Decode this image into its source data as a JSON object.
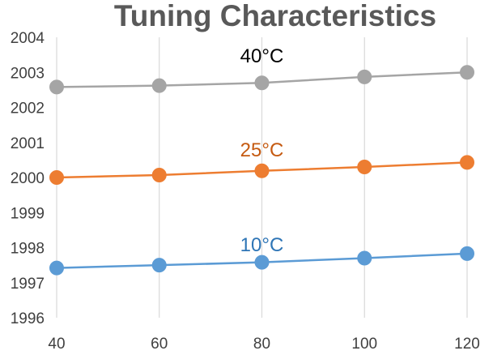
{
  "chart_data": {
    "type": "line",
    "title": "Tuning Characteristics",
    "xlabel": "",
    "ylabel": "",
    "x": [
      40,
      60,
      80,
      100,
      120
    ],
    "xlim": [
      40,
      120
    ],
    "ylim": [
      1996,
      2004
    ],
    "x_ticks": [
      "40",
      "60",
      "80",
      "100",
      "120"
    ],
    "y_ticks": [
      "1996",
      "1997",
      "1998",
      "1999",
      "2000",
      "2001",
      "2002",
      "2003",
      "2004"
    ],
    "grid": "vertical",
    "legend": "none",
    "series": [
      {
        "values": [
          2002.58,
          2002.62,
          2002.7,
          2002.87,
          2003.0
        ],
        "color": "#a5a5a5",
        "label_text": "40",
        "label_unit": "°C",
        "label_color": "#000000",
        "label_anchor": {
          "x": 80,
          "y": 2003.28
        }
      },
      {
        "values": [
          2000.0,
          2000.07,
          2000.19,
          2000.3,
          2000.43
        ],
        "color": "#ed7d31",
        "label_text": "25",
        "label_unit": "°C",
        "label_color": "#c55a11",
        "label_anchor": {
          "x": 80,
          "y": 2000.6
        }
      },
      {
        "values": [
          1997.42,
          1997.5,
          1997.58,
          1997.7,
          1997.83
        ],
        "color": "#5b9bd5",
        "label_text": "10",
        "label_unit": "°C",
        "label_color": "#2e75b6",
        "label_anchor": {
          "x": 80,
          "y": 1997.9
        }
      }
    ]
  }
}
